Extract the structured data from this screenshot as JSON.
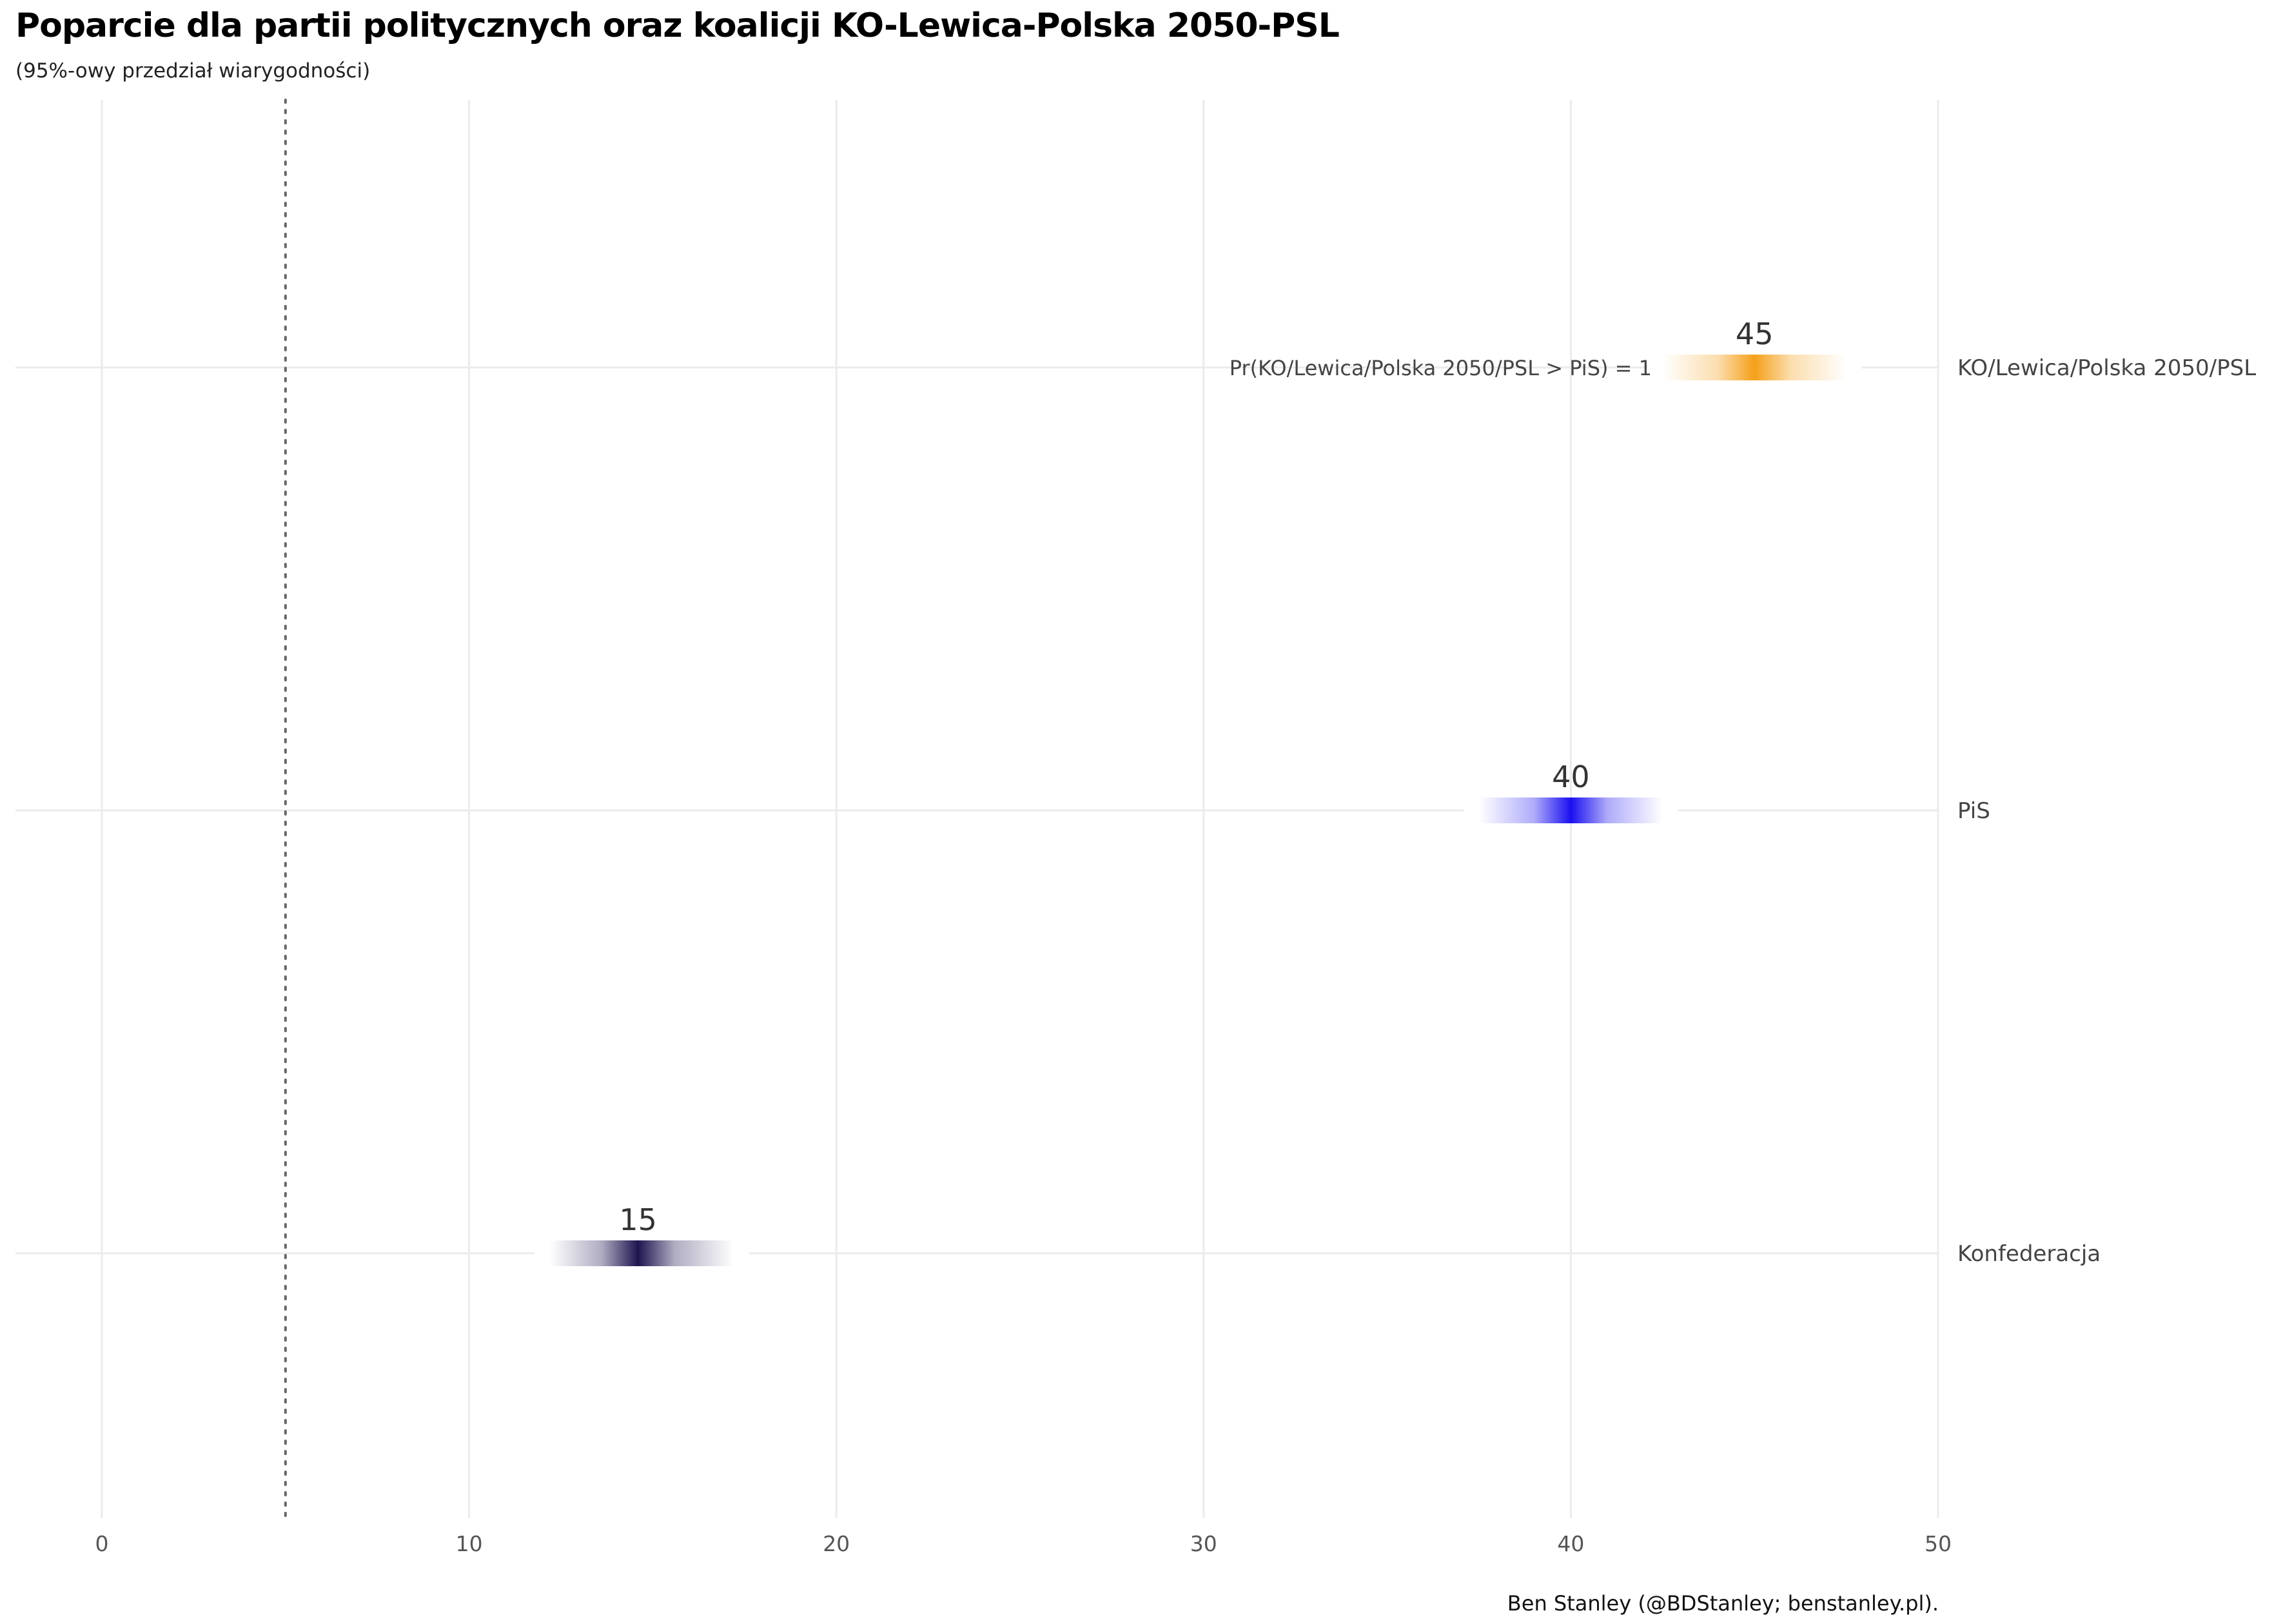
{
  "chart_data": {
    "type": "interval",
    "title": "Poparcie dla partii politycznych oraz koalicji KO-Lewica-Polska 2050-PSL",
    "subtitle": "(95%-owy przedział wiarygodności)",
    "caption": "Ben Stanley (@BDStanley; benstanley.pl).",
    "x_ticks": [
      "0",
      "10",
      "20",
      "30",
      "40",
      "50"
    ],
    "xlim": [
      0,
      50
    ],
    "threshold_line": 5,
    "grid": true,
    "categories": [
      "KO/Lewica/Polska 2050/PSL",
      "PiS",
      "Konfederacja"
    ],
    "series": [
      {
        "category": "KO/Lewica/Polska 2050/PSL",
        "value": 45,
        "value_label": "45",
        "low": 42.5,
        "high": 47.5,
        "color": "#F5A01A"
      },
      {
        "category": "PiS",
        "value": 40,
        "value_label": "40",
        "low": 37.5,
        "high": 42.5,
        "color": "#1A10F0"
      },
      {
        "category": "Konfederacja",
        "value": 14.6,
        "value_label": "15",
        "low": 12.2,
        "high": 17.2,
        "color": "#1E1550"
      }
    ],
    "annotation": {
      "category": "KO/Lewica/Polska 2050/PSL",
      "text": "Pr(KO/Lewica/Polska 2050/PSL > PiS)  =  1"
    }
  }
}
